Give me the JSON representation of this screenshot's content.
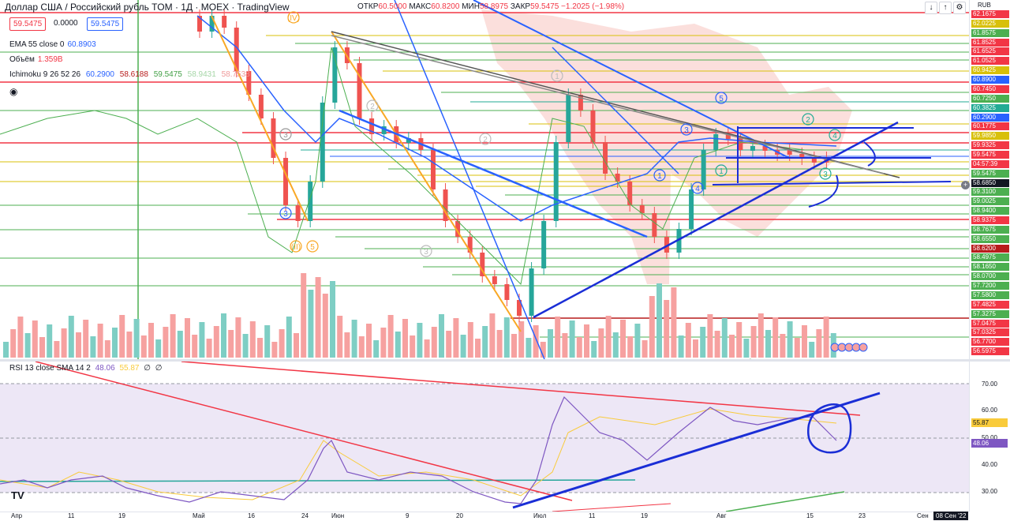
{
  "header": {
    "title": "Доллар США / Российский рубль TOM · 1Д · MOEX · TradingView",
    "ohlc": {
      "open_label": "ОТКР",
      "open": "60.5000",
      "high_label": "МАКС",
      "high": "60.8200",
      "low_label": "МИН",
      "low": "58.8975",
      "close_label": "ЗАКР",
      "close": "59.5475",
      "change": "−1.2025 (−1.98%)"
    },
    "sell_price": "59.5475",
    "spread": "0.0000",
    "buy_price": "59.5475",
    "currency": "RUB"
  },
  "indicators": {
    "ema": {
      "label": "EMA 55 close 0",
      "value": "60.8903"
    },
    "volume": {
      "label": "Объём",
      "value": "1.359B"
    },
    "ichimoku": {
      "label": "Ichimoku 9 26 52 26",
      "v1": "60.2900",
      "v2": "58.6188",
      "v3": "59.5475",
      "v4": "58.9431",
      "v5": "58.7538"
    }
  },
  "price_scale": {
    "labels": [
      {
        "text": "62.1675",
        "color": "#f23645"
      },
      {
        "text": "62.0225",
        "color": "#d8c00a"
      },
      {
        "text": "61.8575",
        "color": "#4caf50"
      },
      {
        "text": "61.8525",
        "color": "#f23645"
      },
      {
        "text": "61.6525",
        "color": "#f23645"
      },
      {
        "text": "61.0525",
        "color": "#f23645"
      },
      {
        "text": "60.9425",
        "color": "#d8c00a"
      },
      {
        "text": "60.8900",
        "color": "#2962ff"
      },
      {
        "text": "60.7450",
        "color": "#f23645"
      },
      {
        "text": "60.7250",
        "color": "#4caf50"
      },
      {
        "text": "60.3825",
        "color": "#22ab94"
      },
      {
        "text": "60.2900",
        "color": "#2962ff"
      },
      {
        "text": "60.1775",
        "color": "#f23645"
      },
      {
        "text": "59.9850",
        "color": "#d8c00a"
      },
      {
        "text": "59.9325",
        "color": "#f23645"
      },
      {
        "text": "59.5475",
        "color": "#f23645"
      },
      {
        "text": "04:57:39",
        "color": "#f23645"
      },
      {
        "text": "59.5475",
        "color": "#4caf50"
      },
      {
        "text": "58.6850",
        "color": "#131722"
      },
      {
        "text": "59.3100",
        "color": "#4caf50"
      },
      {
        "text": "59.0025",
        "color": "#4caf50"
      },
      {
        "text": "58.9400",
        "color": "#4caf50"
      },
      {
        "text": "58.9375",
        "color": "#f23645"
      },
      {
        "text": "58.7675",
        "color": "#4caf50"
      },
      {
        "text": "58.6550",
        "color": "#4caf50"
      },
      {
        "text": "58.6200",
        "color": "#b71c1c"
      },
      {
        "text": "58.4975",
        "color": "#4caf50"
      },
      {
        "text": "58.1650",
        "color": "#4caf50"
      },
      {
        "text": "58.0700",
        "color": "#4caf50"
      },
      {
        "text": "57.7200",
        "color": "#4caf50"
      },
      {
        "text": "57.5800",
        "color": "#4caf50"
      },
      {
        "text": "57.4825",
        "color": "#f23645"
      },
      {
        "text": "57.3275",
        "color": "#4caf50"
      },
      {
        "text": "57.0475",
        "color": "#f23645"
      },
      {
        "text": "57.0325",
        "color": "#f23645"
      },
      {
        "text": "56.7700",
        "color": "#f23645"
      },
      {
        "text": "56.5975",
        "color": "#f23645"
      }
    ]
  },
  "rsi": {
    "label": "RSI 13 close SMA 14 2",
    "value": "48.06",
    "sma": "55.87",
    "extra1": "∅",
    "extra2": "∅",
    "ticks": [
      "70.00",
      "60.00",
      "50.00",
      "40.00",
      "30.00"
    ],
    "badge_sma": "55.87",
    "badge_rsi": "48.06"
  },
  "time_axis": {
    "labels": [
      "Апр",
      "11",
      "19",
      "Май",
      "16",
      "24",
      "Июн",
      "9",
      "20",
      "Июл",
      "11",
      "19",
      "Авг",
      "15",
      "23",
      "Сен"
    ],
    "current_date": "08 Сен '22"
  },
  "wave_labels": [
    "(IV)",
    "(II)",
    "3",
    "3",
    "5",
    "2",
    "1",
    "3",
    "2",
    "1",
    "3",
    "4",
    "5",
    "1",
    "2",
    "3",
    "4"
  ],
  "colors": {
    "up": "#26a69a",
    "down": "#ef5350",
    "accent": "#2962ff",
    "cloud": "#f8c4c0",
    "rsi_bg": "#ede7f6"
  },
  "toolbar": {
    "icons": [
      "down-arrow-icon",
      "up-arrow-icon",
      "settings-icon"
    ]
  },
  "logo": "TV"
}
